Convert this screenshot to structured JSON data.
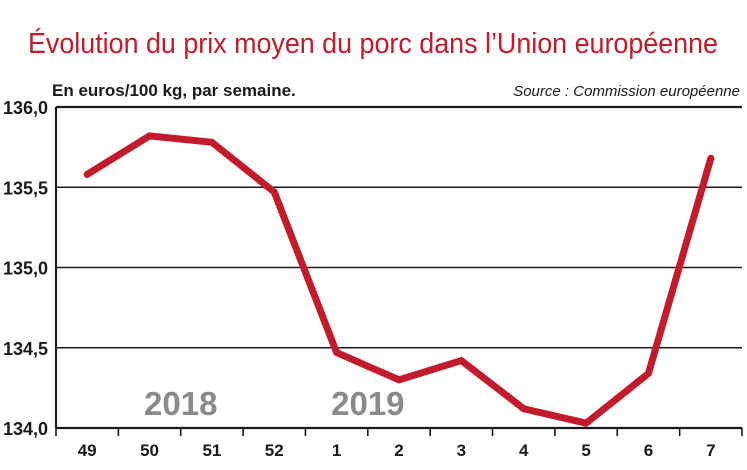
{
  "chart_data": {
    "type": "line",
    "title": "Évolution du prix moyen du porc dans l’Union européenne",
    "subtitle": "En euros/100 kg, par semaine.",
    "source": "Source : Commission européenne",
    "xlabel": "",
    "ylabel": "",
    "categories": [
      "49",
      "50",
      "51",
      "52",
      "1",
      "2",
      "3",
      "4",
      "5",
      "6",
      "7"
    ],
    "series": [
      {
        "values": [
          135.58,
          135.82,
          135.78,
          135.47,
          134.47,
          134.3,
          134.42,
          134.12,
          134.03,
          134.34,
          135.68
        ]
      }
    ],
    "ylim": [
      134.0,
      136.0
    ],
    "yticks": [
      "134,0",
      "134,5",
      "135,0",
      "135,5",
      "136,0"
    ],
    "year_labels": [
      {
        "text": "2018",
        "at_index": 1.5
      },
      {
        "text": "2019",
        "at_index": 4.5
      }
    ],
    "grid": "horizontal",
    "legend": "none",
    "colors": {
      "line": "#c11b2c",
      "title": "#c11b2c",
      "grid": "#1a1a1a",
      "year_text": "#8a8a8a"
    }
  }
}
